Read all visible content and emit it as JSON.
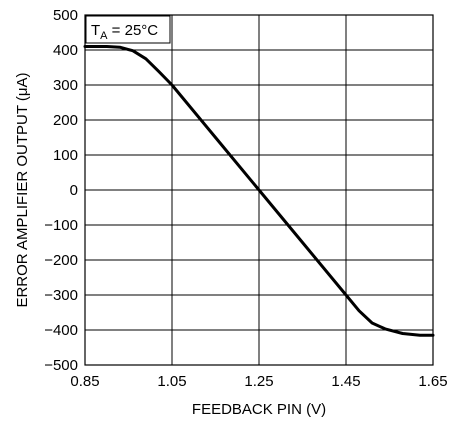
{
  "chart_data": {
    "type": "line",
    "title": "",
    "xlabel": "FEEDBACK PIN (V)",
    "ylabel": "ERROR AMPLIFIER OUTPUT (μA)",
    "xlim": [
      0.85,
      1.65
    ],
    "ylim": [
      -500,
      500
    ],
    "x_ticks": [
      "0.85",
      "1.05",
      "1.25",
      "1.45",
      "1.65"
    ],
    "y_ticks": [
      "500",
      "400",
      "300",
      "200",
      "100",
      "0",
      "−100",
      "−200",
      "−300",
      "−400",
      "−500"
    ],
    "grid": true,
    "annotation": {
      "main": "T",
      "sub": "A",
      "rest": " = 25°C"
    },
    "series": [
      {
        "name": "",
        "x": [
          0.85,
          0.9,
          0.93,
          0.96,
          0.99,
          1.02,
          1.05,
          1.15,
          1.25,
          1.35,
          1.45,
          1.48,
          1.51,
          1.54,
          1.58,
          1.62,
          1.65
        ],
        "y": [
          410,
          410,
          408,
          398,
          375,
          338,
          300,
          150,
          0,
          -150,
          -300,
          -345,
          -380,
          -397,
          -410,
          -415,
          -415
        ]
      }
    ]
  }
}
